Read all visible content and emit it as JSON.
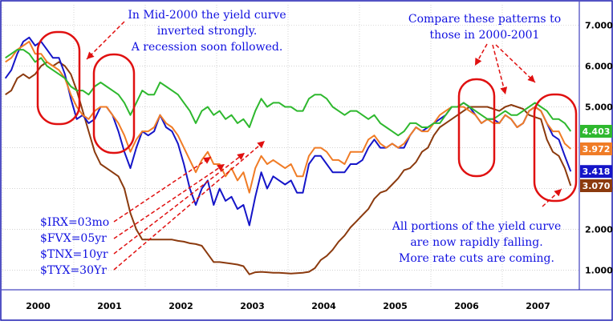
{
  "chart_data": {
    "type": "line",
    "x": [
      "2000-01",
      "2000-02",
      "2000-03",
      "2000-04",
      "2000-05",
      "2000-06",
      "2000-07",
      "2000-08",
      "2000-09",
      "2000-10",
      "2000-11",
      "2000-12",
      "2001-01",
      "2001-02",
      "2001-03",
      "2001-04",
      "2001-05",
      "2001-06",
      "2001-07",
      "2001-08",
      "2001-09",
      "2001-10",
      "2001-11",
      "2001-12",
      "2002-01",
      "2002-02",
      "2002-03",
      "2002-04",
      "2002-05",
      "2002-06",
      "2002-07",
      "2002-08",
      "2002-09",
      "2002-10",
      "2002-11",
      "2002-12",
      "2003-01",
      "2003-02",
      "2003-03",
      "2003-04",
      "2003-05",
      "2003-06",
      "2003-07",
      "2003-08",
      "2003-09",
      "2003-10",
      "2003-11",
      "2003-12",
      "2004-01",
      "2004-02",
      "2004-03",
      "2004-04",
      "2004-05",
      "2004-06",
      "2004-07",
      "2004-08",
      "2004-09",
      "2004-10",
      "2004-11",
      "2004-12",
      "2005-01",
      "2005-02",
      "2005-03",
      "2005-04",
      "2005-05",
      "2005-06",
      "2005-07",
      "2005-08",
      "2005-09",
      "2005-10",
      "2005-11",
      "2005-12",
      "2006-01",
      "2006-02",
      "2006-03",
      "2006-04",
      "2006-05",
      "2006-06",
      "2006-07",
      "2006-08",
      "2006-09",
      "2006-10",
      "2006-11",
      "2006-12",
      "2007-01",
      "2007-02",
      "2007-03",
      "2007-04",
      "2007-05",
      "2007-06",
      "2007-07",
      "2007-08",
      "2007-09",
      "2007-10",
      "2007-11",
      "2007-12"
    ],
    "series": [
      {
        "color": "#8b3a0e",
        "values": [
          5.3,
          5.4,
          5.7,
          5.8,
          5.7,
          5.8,
          6.0,
          6.1,
          6.0,
          6.1,
          6.0,
          5.8,
          5.4,
          4.9,
          4.4,
          3.9,
          3.6,
          3.5,
          3.4,
          3.3,
          3.0,
          2.4,
          2.0,
          1.75,
          1.75,
          1.75,
          1.75,
          1.75,
          1.75,
          1.72,
          1.7,
          1.66,
          1.64,
          1.6,
          1.4,
          1.2,
          1.2,
          1.18,
          1.16,
          1.14,
          1.1,
          0.9,
          0.95,
          0.96,
          0.95,
          0.94,
          0.94,
          0.93,
          0.92,
          0.93,
          0.94,
          0.96,
          1.05,
          1.25,
          1.35,
          1.5,
          1.7,
          1.85,
          2.05,
          2.2,
          2.35,
          2.5,
          2.75,
          2.9,
          2.95,
          3.1,
          3.25,
          3.45,
          3.5,
          3.65,
          3.9,
          4.0,
          4.3,
          4.5,
          4.6,
          4.7,
          4.8,
          4.9,
          5.0,
          5.0,
          5.0,
          5.0,
          4.95,
          4.9,
          5.0,
          5.05,
          5.0,
          4.95,
          4.8,
          4.75,
          4.7,
          4.2,
          3.9,
          3.8,
          3.5,
          3.07
        ]
      },
      {
        "color": "#1515c8",
        "values": [
          5.7,
          5.9,
          6.3,
          6.6,
          6.7,
          6.5,
          6.6,
          6.4,
          6.2,
          6.2,
          5.8,
          5.2,
          4.7,
          4.8,
          4.6,
          4.7,
          5.0,
          5.0,
          4.8,
          4.4,
          3.9,
          3.5,
          4.0,
          4.4,
          4.3,
          4.4,
          4.8,
          4.5,
          4.4,
          4.1,
          3.6,
          3.0,
          2.6,
          3.0,
          3.2,
          2.6,
          3.0,
          2.7,
          2.8,
          2.5,
          2.6,
          2.1,
          2.8,
          3.4,
          3.0,
          3.3,
          3.2,
          3.1,
          3.2,
          2.9,
          2.9,
          3.6,
          3.8,
          3.8,
          3.6,
          3.4,
          3.4,
          3.4,
          3.6,
          3.6,
          3.7,
          4.0,
          4.2,
          4.0,
          4.0,
          4.1,
          4.0,
          4.0,
          4.3,
          4.5,
          4.4,
          4.5,
          4.6,
          4.7,
          4.8,
          5.0,
          5.0,
          5.1,
          5.0,
          4.8,
          4.6,
          4.7,
          4.7,
          4.6,
          4.8,
          4.7,
          4.5,
          4.6,
          4.9,
          5.0,
          4.9,
          4.6,
          4.3,
          4.2,
          3.8,
          3.418
        ]
      },
      {
        "color": "#f07c26",
        "values": [
          6.1,
          6.2,
          6.4,
          6.5,
          6.6,
          6.3,
          6.3,
          6.1,
          6.0,
          5.9,
          5.7,
          5.3,
          5.0,
          4.8,
          4.7,
          4.9,
          5.0,
          5.0,
          4.8,
          4.6,
          4.3,
          3.9,
          4.2,
          4.4,
          4.4,
          4.5,
          4.8,
          4.6,
          4.5,
          4.3,
          4.0,
          3.7,
          3.4,
          3.7,
          3.9,
          3.6,
          3.6,
          3.3,
          3.5,
          3.2,
          3.4,
          2.9,
          3.5,
          3.8,
          3.6,
          3.7,
          3.6,
          3.5,
          3.6,
          3.3,
          3.3,
          3.8,
          4.0,
          4.0,
          3.9,
          3.7,
          3.7,
          3.6,
          3.9,
          3.9,
          3.9,
          4.2,
          4.3,
          4.1,
          4.0,
          4.1,
          4.0,
          4.1,
          4.3,
          4.5,
          4.4,
          4.4,
          4.6,
          4.8,
          4.9,
          5.0,
          5.0,
          5.0,
          4.9,
          4.8,
          4.6,
          4.7,
          4.6,
          4.6,
          4.8,
          4.7,
          4.5,
          4.6,
          4.9,
          5.0,
          4.9,
          4.6,
          4.4,
          4.4,
          4.1,
          3.972
        ]
      },
      {
        "color": "#2eb82e",
        "values": [
          6.2,
          6.3,
          6.4,
          6.4,
          6.3,
          6.1,
          6.2,
          6.0,
          5.9,
          5.8,
          5.7,
          5.5,
          5.4,
          5.4,
          5.3,
          5.5,
          5.6,
          5.5,
          5.4,
          5.3,
          5.1,
          4.8,
          5.1,
          5.4,
          5.3,
          5.3,
          5.6,
          5.5,
          5.4,
          5.3,
          5.1,
          4.9,
          4.6,
          4.9,
          5.0,
          4.8,
          4.9,
          4.7,
          4.8,
          4.6,
          4.7,
          4.5,
          4.9,
          5.2,
          5.0,
          5.1,
          5.1,
          5.0,
          5.0,
          4.9,
          4.9,
          5.2,
          5.3,
          5.3,
          5.2,
          5.0,
          4.9,
          4.8,
          4.9,
          4.9,
          4.8,
          4.7,
          4.8,
          4.6,
          4.5,
          4.4,
          4.3,
          4.4,
          4.6,
          4.6,
          4.5,
          4.5,
          4.6,
          4.6,
          4.8,
          5.0,
          5.0,
          5.1,
          5.0,
          4.9,
          4.8,
          4.7,
          4.7,
          4.8,
          4.9,
          4.8,
          4.8,
          4.9,
          5.0,
          5.1,
          5.0,
          4.9,
          4.7,
          4.7,
          4.6,
          4.403
        ]
      }
    ],
    "yticks": [
      "1.000",
      "2.000",
      "3.000",
      "4.000",
      "5.000",
      "6.000",
      "7.000"
    ],
    "ylim": [
      0.6,
      7.5
    ],
    "xticks": [
      "2000",
      "2001",
      "2002",
      "2003",
      "2004",
      "2005",
      "2006",
      "2007"
    ],
    "last_labels": [
      {
        "text": "4.403",
        "value": 4.403,
        "color": "#2eb82e"
      },
      {
        "text": "3.972",
        "value": 3.972,
        "color": "#f07c26"
      },
      {
        "text": "3.418",
        "value": 3.418,
        "color": "#1515c8"
      },
      {
        "text": "3.070",
        "value": 3.07,
        "color": "#8b3a0e"
      }
    ],
    "annotations": {
      "inversion": [
        "In Mid-2000 the yield curve",
        "inverted strongly.",
        "A recession soon followed."
      ],
      "compare": [
        "Compare these patterns to",
        "those in 2000-2001"
      ],
      "falling": [
        "All portions of the yield curve",
        "are now rapidly falling.",
        "More rate cuts are coming."
      ],
      "legend": [
        "$IRX=03mo",
        "$FVX=05yr",
        "$TNX=10yr",
        "$TYX=30Yr"
      ]
    },
    "colors": {
      "annotation_text": "#1010e0",
      "highlight": "#e01010",
      "axis_text": "#000000",
      "background": "#ffffff"
    }
  }
}
